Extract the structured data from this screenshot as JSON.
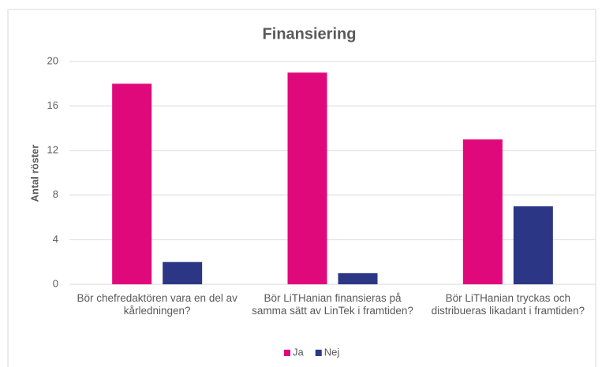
{
  "chart_data": {
    "type": "bar",
    "title": "Finansiering",
    "ylabel": "Antal röster",
    "categories": [
      "Bör chefredaktören vara en del av kårledningen?",
      "Bör LiTHanian finansieras på samma sätt av LinTek i framtiden?",
      "Bör LiTHanian tryckas och distribueras likadant i framtiden?"
    ],
    "series": [
      {
        "name": "Ja",
        "color": "#e0097b",
        "values": [
          18,
          19,
          13
        ]
      },
      {
        "name": "Nej",
        "color": "#2b3785",
        "values": [
          2,
          1,
          7
        ]
      }
    ],
    "ylim": [
      0,
      20
    ],
    "yticks": [
      0,
      4,
      8,
      12,
      16,
      20
    ],
    "grid": true,
    "legend": "bottom"
  }
}
